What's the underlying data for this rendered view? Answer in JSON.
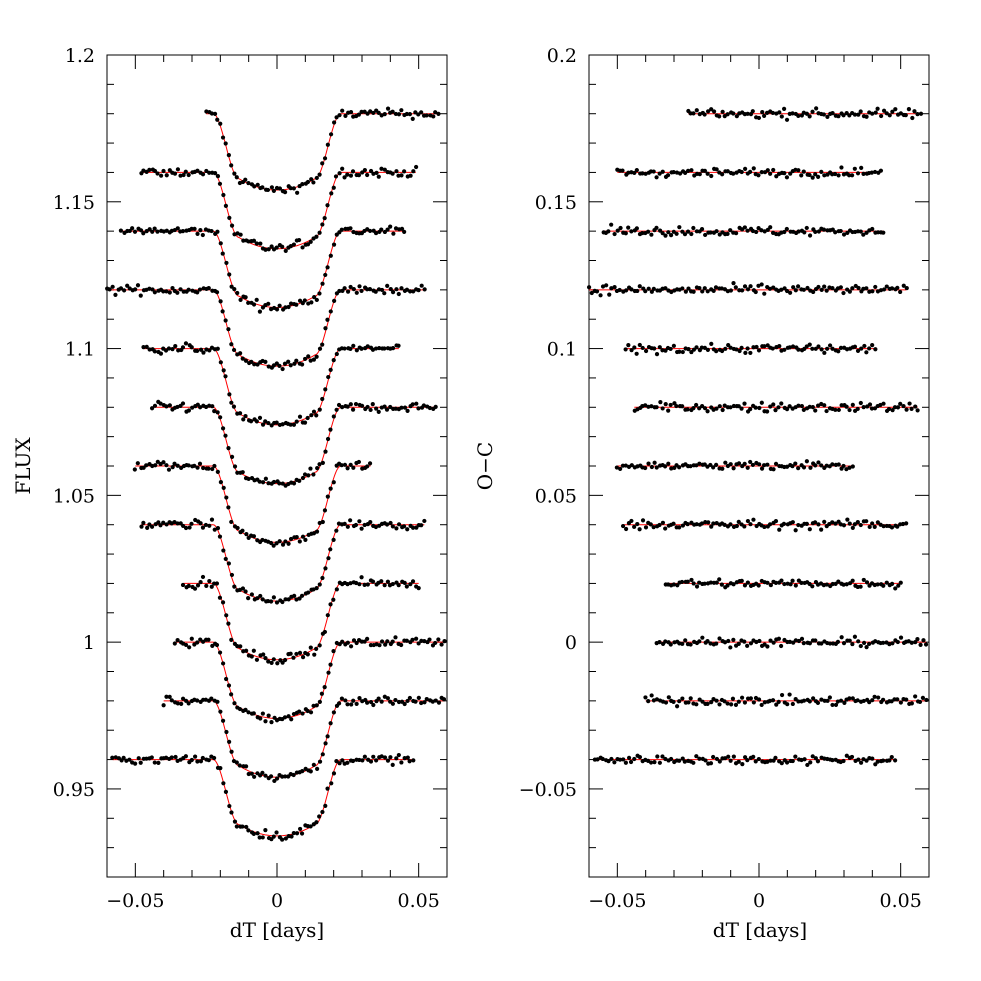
{
  "chart_data": [
    {
      "type": "scatter",
      "xlabel": "dT [days]",
      "ylabel": "FLUX",
      "xlim": [
        -0.06,
        0.06
      ],
      "ylim": [
        0.92,
        1.2
      ],
      "xticks": [
        -0.05,
        0,
        0.05
      ],
      "xtick_labels": [
        "−0.05",
        "0",
        "0.05"
      ],
      "yticks": [
        0.95,
        1.0,
        1.05,
        1.1,
        1.15,
        1.2
      ],
      "ytick_labels": [
        "0.95",
        "1",
        "1.05",
        "1.1",
        "1.15",
        "1.2"
      ],
      "point_color": "#000000",
      "model_color": "#ff0000",
      "model": {
        "depth": 0.026,
        "half_duration": 0.0225,
        "ingress": 0.009
      },
      "series": [
        {
          "baseline": 1.18,
          "x_range": [
            -0.025,
            0.057
          ],
          "step": 0.001
        },
        {
          "baseline": 1.16,
          "x_range": [
            -0.048,
            0.049
          ],
          "step": 0.001
        },
        {
          "baseline": 1.14,
          "x_range": [
            -0.055,
            0.045
          ],
          "step": 0.001
        },
        {
          "baseline": 1.12,
          "x_range": [
            -0.06,
            0.052
          ],
          "step": 0.001
        },
        {
          "baseline": 1.1,
          "x_range": [
            -0.047,
            0.043
          ],
          "step": 0.001
        },
        {
          "baseline": 1.08,
          "x_range": [
            -0.044,
            0.056
          ],
          "step": 0.001
        },
        {
          "baseline": 1.06,
          "x_range": [
            -0.05,
            0.033
          ],
          "step": 0.001
        },
        {
          "baseline": 1.04,
          "x_range": [
            -0.048,
            0.052
          ],
          "step": 0.001
        },
        {
          "baseline": 1.02,
          "x_range": [
            -0.033,
            0.05
          ],
          "step": 0.001
        },
        {
          "baseline": 1.0,
          "x_range": [
            -0.036,
            0.059
          ],
          "step": 0.001
        },
        {
          "baseline": 0.98,
          "x_range": [
            -0.04,
            0.059
          ],
          "step": 0.001
        },
        {
          "baseline": 0.96,
          "x_range": [
            -0.058,
            0.048
          ],
          "step": 0.001
        }
      ]
    },
    {
      "type": "scatter",
      "xlabel": "dT [days]",
      "ylabel": "O−C",
      "xlim": [
        -0.06,
        0.06
      ],
      "ylim": [
        -0.08,
        0.2
      ],
      "xticks": [
        -0.05,
        0,
        0.05
      ],
      "xtick_labels": [
        "−0.05",
        "0",
        "0.05"
      ],
      "yticks": [
        -0.05,
        0,
        0.05,
        0.1,
        0.15,
        0.2
      ],
      "ytick_labels": [
        "−0.05",
        "0",
        "0.05",
        "0.1",
        "0.15",
        "0.2"
      ],
      "point_color": "#000000",
      "model_color": "#ff0000",
      "series": [
        {
          "baseline": 0.18,
          "x_range": [
            -0.025,
            0.057
          ],
          "step": 0.001
        },
        {
          "baseline": 0.16,
          "x_range": [
            -0.05,
            0.043
          ],
          "step": 0.001
        },
        {
          "baseline": 0.14,
          "x_range": [
            -0.055,
            0.044
          ],
          "step": 0.001
        },
        {
          "baseline": 0.12,
          "x_range": [
            -0.06,
            0.052
          ],
          "step": 0.001
        },
        {
          "baseline": 0.1,
          "x_range": [
            -0.047,
            0.041
          ],
          "step": 0.001
        },
        {
          "baseline": 0.08,
          "x_range": [
            -0.044,
            0.056
          ],
          "step": 0.001
        },
        {
          "baseline": 0.06,
          "x_range": [
            -0.05,
            0.033
          ],
          "step": 0.001
        },
        {
          "baseline": 0.04,
          "x_range": [
            -0.048,
            0.052
          ],
          "step": 0.001
        },
        {
          "baseline": 0.02,
          "x_range": [
            -0.033,
            0.05
          ],
          "step": 0.001
        },
        {
          "baseline": 0.0,
          "x_range": [
            -0.036,
            0.059
          ],
          "step": 0.001
        },
        {
          "baseline": -0.02,
          "x_range": [
            -0.04,
            0.059
          ],
          "step": 0.001
        },
        {
          "baseline": -0.04,
          "x_range": [
            -0.058,
            0.048
          ],
          "step": 0.001
        }
      ]
    }
  ]
}
